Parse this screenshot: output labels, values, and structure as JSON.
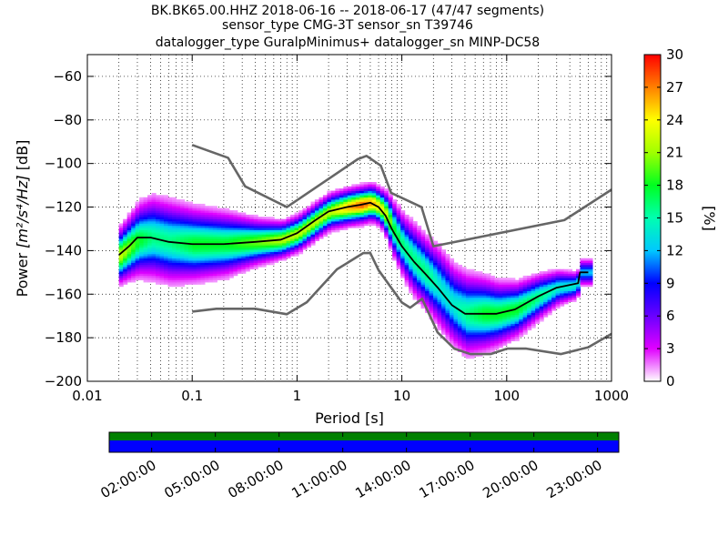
{
  "chart_data": {
    "type": "heatmap",
    "title_lines": [
      "BK.BK65.00.HHZ   2018-06-16 -- 2018-06-17  (47/47 segments)",
      "sensor_type CMG-3T sensor_sn T39746",
      "datalogger_type GuralpMinimus+ datalogger_sn MINP-DC58"
    ],
    "xlabel": "Period [s]",
    "ylabel_prefix": "Power ",
    "ylabel_unit": "[m²/s⁴/Hz]",
    "ylabel_suffix": " [dB]",
    "x_scale": "log",
    "xlim": [
      0.01,
      1000
    ],
    "ylim": [
      -200,
      -50
    ],
    "x_ticks": [
      0.01,
      0.1,
      1,
      10,
      100,
      1000
    ],
    "x_tick_labels": [
      "0.01",
      "0.1",
      "1",
      "10",
      "100",
      "1000"
    ],
    "y_ticks": [
      -200,
      -180,
      -160,
      -140,
      -120,
      -100,
      -80,
      -60
    ],
    "y_tick_labels": [
      "−200",
      "−180",
      "−160",
      "−140",
      "−120",
      "−100",
      "−80",
      "−60"
    ],
    "grid": true,
    "colorbar": {
      "label": "[%]",
      "range": [
        0,
        30
      ],
      "ticks": [
        0,
        3,
        6,
        9,
        12,
        15,
        18,
        21,
        24,
        27,
        30
      ],
      "tick_labels": [
        "0",
        "3",
        "6",
        "9",
        "12",
        "15",
        "18",
        "21",
        "24",
        "27",
        "30"
      ]
    },
    "series": [
      {
        "role": "nhnm",
        "color": "#666666",
        "points": [
          [
            0.1,
            -91.5
          ],
          [
            0.22,
            -97.4
          ],
          [
            0.32,
            -110.5
          ],
          [
            0.8,
            -120
          ],
          [
            3.8,
            -98
          ],
          [
            4.6,
            -96.5
          ],
          [
            6.3,
            -101
          ],
          [
            7.9,
            -113.5
          ],
          [
            15.4,
            -120
          ],
          [
            20,
            -138
          ],
          [
            354.8,
            -126
          ],
          [
            1000,
            -112
          ]
        ]
      },
      {
        "role": "nlnm",
        "color": "#666666",
        "points": [
          [
            0.1,
            -168
          ],
          [
            0.17,
            -166.7
          ],
          [
            0.4,
            -166.7
          ],
          [
            0.8,
            -169.2
          ],
          [
            1.24,
            -163.7
          ],
          [
            2.4,
            -148.6
          ],
          [
            4.3,
            -141.1
          ],
          [
            5,
            -141.1
          ],
          [
            6,
            -149
          ],
          [
            10,
            -163.8
          ],
          [
            12,
            -166.2
          ],
          [
            15.6,
            -162.1
          ],
          [
            21.9,
            -177.5
          ],
          [
            31.6,
            -185
          ],
          [
            45,
            -187.5
          ],
          [
            70,
            -187.5
          ],
          [
            101,
            -185
          ],
          [
            154,
            -185
          ],
          [
            328,
            -187.5
          ],
          [
            600,
            -184.4
          ],
          [
            1000,
            -178.2
          ]
        ]
      },
      {
        "role": "mode",
        "color": "#000000",
        "points": [
          [
            0.02,
            -142
          ],
          [
            0.025,
            -138
          ],
          [
            0.03,
            -134
          ],
          [
            0.04,
            -134
          ],
          [
            0.06,
            -136
          ],
          [
            0.1,
            -137
          ],
          [
            0.2,
            -137
          ],
          [
            0.4,
            -136
          ],
          [
            0.7,
            -135
          ],
          [
            1,
            -132
          ],
          [
            1.5,
            -126
          ],
          [
            2,
            -122
          ],
          [
            3,
            -120
          ],
          [
            4,
            -119
          ],
          [
            5,
            -118
          ],
          [
            6,
            -120
          ],
          [
            7,
            -124
          ],
          [
            8,
            -130
          ],
          [
            10,
            -138
          ],
          [
            13,
            -145
          ],
          [
            17,
            -151
          ],
          [
            22,
            -157
          ],
          [
            30,
            -165
          ],
          [
            40,
            -169
          ],
          [
            60,
            -169
          ],
          [
            80,
            -169
          ],
          [
            120,
            -167
          ],
          [
            200,
            -161
          ],
          [
            300,
            -157
          ],
          [
            480,
            -155
          ],
          [
            500,
            -150
          ],
          [
            600,
            -150
          ]
        ]
      }
    ],
    "psd_distribution": [
      {
        "period": 0.02,
        "median": -142,
        "spread": 6,
        "peak": 22
      },
      {
        "period": 0.025,
        "median": -138,
        "spread": 7,
        "peak": 20
      },
      {
        "period": 0.03,
        "median": -135,
        "spread": 8,
        "peak": 18
      },
      {
        "period": 0.04,
        "median": -134,
        "spread": 9,
        "peak": 16
      },
      {
        "period": 0.06,
        "median": -136,
        "spread": 9,
        "peak": 16
      },
      {
        "period": 0.1,
        "median": -137,
        "spread": 8,
        "peak": 18
      },
      {
        "period": 0.2,
        "median": -137,
        "spread": 7,
        "peak": 18
      },
      {
        "period": 0.4,
        "median": -136,
        "spread": 5,
        "peak": 20
      },
      {
        "period": 0.7,
        "median": -135,
        "spread": 4,
        "peak": 22
      },
      {
        "period": 1,
        "median": -132,
        "spread": 4,
        "peak": 22
      },
      {
        "period": 1.5,
        "median": -126,
        "spread": 4,
        "peak": 22
      },
      {
        "period": 2,
        "median": -122,
        "spread": 4,
        "peak": 22
      },
      {
        "period": 3,
        "median": -120,
        "spread": 4,
        "peak": 26
      },
      {
        "period": 4,
        "median": -119,
        "spread": 4,
        "peak": 28
      },
      {
        "period": 5,
        "median": -118,
        "spread": 4,
        "peak": 26
      },
      {
        "period": 6,
        "median": -120,
        "spread": 4,
        "peak": 24
      },
      {
        "period": 7,
        "median": -124,
        "spread": 5,
        "peak": 22
      },
      {
        "period": 8,
        "median": -130,
        "spread": 6,
        "peak": 18
      },
      {
        "period": 10,
        "median": -138,
        "spread": 7,
        "peak": 16
      },
      {
        "period": 13,
        "median": -145,
        "spread": 8,
        "peak": 16
      },
      {
        "period": 17,
        "median": -151,
        "spread": 8,
        "peak": 16
      },
      {
        "period": 22,
        "median": -157,
        "spread": 9,
        "peak": 14
      },
      {
        "period": 30,
        "median": -165,
        "spread": 9,
        "peak": 14
      },
      {
        "period": 40,
        "median": -169,
        "spread": 9,
        "peak": 16
      },
      {
        "period": 60,
        "median": -169,
        "spread": 8,
        "peak": 18
      },
      {
        "period": 80,
        "median": -169,
        "spread": 7,
        "peak": 18
      },
      {
        "period": 120,
        "median": -167,
        "spread": 6,
        "peak": 18
      },
      {
        "period": 200,
        "median": -161,
        "spread": 5,
        "peak": 16
      },
      {
        "period": 300,
        "median": -157,
        "spread": 4,
        "peak": 14
      },
      {
        "period": 450,
        "median": -156,
        "spread": 3,
        "peak": 14
      },
      {
        "period": 500,
        "median": -150,
        "spread": 3,
        "peak": 12
      },
      {
        "period": 600,
        "median": -150,
        "spread": 3,
        "peak": 12
      }
    ],
    "time_coverage": {
      "rows": [
        {
          "role": "data-coverage",
          "color": "#008000"
        },
        {
          "role": "processed-coverage",
          "color": "#0000ff"
        }
      ],
      "tick_labels": [
        "02:00:00",
        "05:00:00",
        "08:00:00",
        "11:00:00",
        "14:00:00",
        "17:00:00",
        "20:00:00",
        "23:00:00"
      ],
      "tick_hours": [
        2,
        5,
        8,
        11,
        14,
        17,
        20,
        23
      ],
      "range_hours": [
        0,
        24
      ]
    }
  }
}
